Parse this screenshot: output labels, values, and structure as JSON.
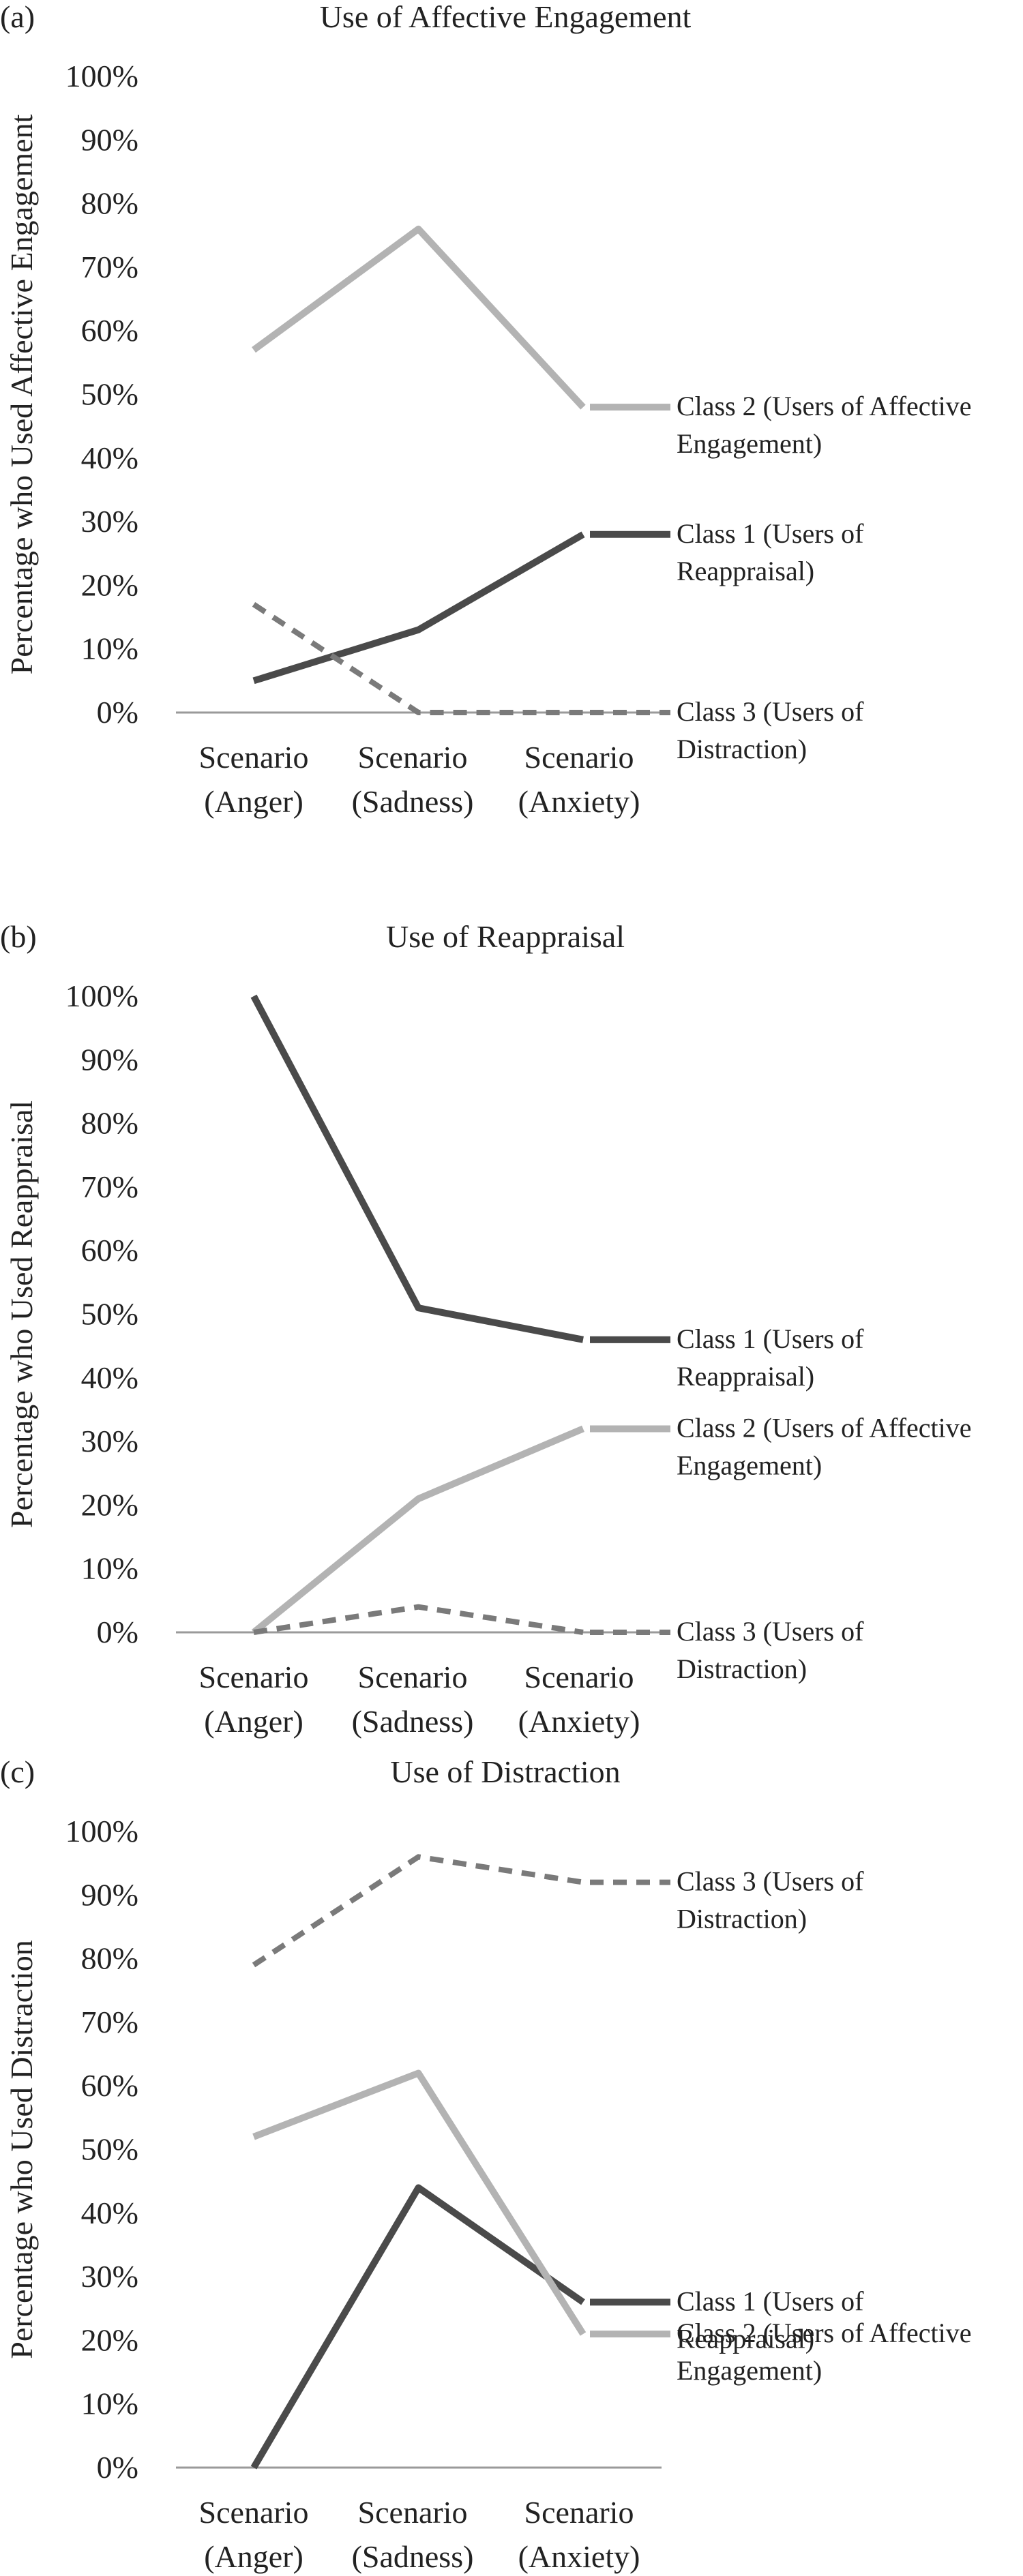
{
  "chart_data": [
    {
      "type": "line",
      "panel": "(a)",
      "title": "Use of Affective Engagement",
      "ylabel": "Percentage who Used Affective Engagement",
      "xlabel": "",
      "categories": [
        [
          "Scenario",
          "(Anger)"
        ],
        [
          "Scenario",
          "(Sadness)"
        ],
        [
          "Scenario",
          "(Anxiety)"
        ]
      ],
      "yticks": [
        "0%",
        "10%",
        "20%",
        "30%",
        "40%",
        "50%",
        "60%",
        "70%",
        "80%",
        "90%",
        "100%"
      ],
      "ylim": [
        0,
        100
      ],
      "grid": false,
      "legend_position": "right",
      "series": [
        {
          "legend": [
            "Class 1 (Users of",
            "Reappraisal)"
          ],
          "values": [
            5,
            13,
            28
          ],
          "color": "#4a4a4a",
          "dashed": false
        },
        {
          "legend": [
            "Class 2 (Users of Affective",
            "Engagement)"
          ],
          "values": [
            57,
            76,
            48
          ],
          "color": "#b3b3b3",
          "dashed": false
        },
        {
          "legend": [
            "Class 3 (Users of",
            "Distraction)"
          ],
          "values": [
            17,
            0,
            0
          ],
          "color": "#7a7a7a",
          "dashed": true
        }
      ]
    },
    {
      "type": "line",
      "panel": "(b)",
      "title": "Use of Reappraisal",
      "ylabel": "Percentage who Used Reappraisal",
      "xlabel": "",
      "categories": [
        [
          "Scenario",
          "(Anger)"
        ],
        [
          "Scenario",
          "(Sadness)"
        ],
        [
          "Scenario",
          "(Anxiety)"
        ]
      ],
      "yticks": [
        "0%",
        "10%",
        "20%",
        "30%",
        "40%",
        "50%",
        "60%",
        "70%",
        "80%",
        "90%",
        "100%"
      ],
      "ylim": [
        0,
        100
      ],
      "grid": false,
      "legend_position": "right",
      "series": [
        {
          "legend": [
            "Class 1 (Users of",
            "Reappraisal)"
          ],
          "values": [
            100,
            51,
            46
          ],
          "color": "#4a4a4a",
          "dashed": false
        },
        {
          "legend": [
            "Class 2 (Users of Affective",
            "Engagement)"
          ],
          "values": [
            0,
            21,
            32
          ],
          "color": "#b3b3b3",
          "dashed": false
        },
        {
          "legend": [
            "Class 3 (Users of",
            "Distraction)"
          ],
          "values": [
            0,
            4,
            0
          ],
          "color": "#7a7a7a",
          "dashed": true
        }
      ]
    },
    {
      "type": "line",
      "panel": "(c)",
      "title": "Use of Distraction",
      "ylabel": "Percentage who Used Distraction",
      "xlabel": "",
      "categories": [
        [
          "Scenario",
          "(Anger)"
        ],
        [
          "Scenario",
          "(Sadness)"
        ],
        [
          "Scenario",
          "(Anxiety)"
        ]
      ],
      "yticks": [
        "0%",
        "10%",
        "20%",
        "30%",
        "40%",
        "50%",
        "60%",
        "70%",
        "80%",
        "90%",
        "100%"
      ],
      "ylim": [
        0,
        100
      ],
      "grid": false,
      "legend_position": "right",
      "series": [
        {
          "legend": [
            "Class 1 (Users of",
            "Reappraisal)"
          ],
          "values": [
            0,
            44,
            26
          ],
          "color": "#4a4a4a",
          "dashed": false
        },
        {
          "legend": [
            "Class 2 (Users of Affective",
            "Engagement)"
          ],
          "values": [
            52,
            62,
            21
          ],
          "color": "#b3b3b3",
          "dashed": false
        },
        {
          "legend": [
            "Class 3 (Users of",
            "Distraction)"
          ],
          "values": [
            79,
            96,
            92
          ],
          "color": "#7a7a7a",
          "dashed": true
        }
      ]
    }
  ]
}
